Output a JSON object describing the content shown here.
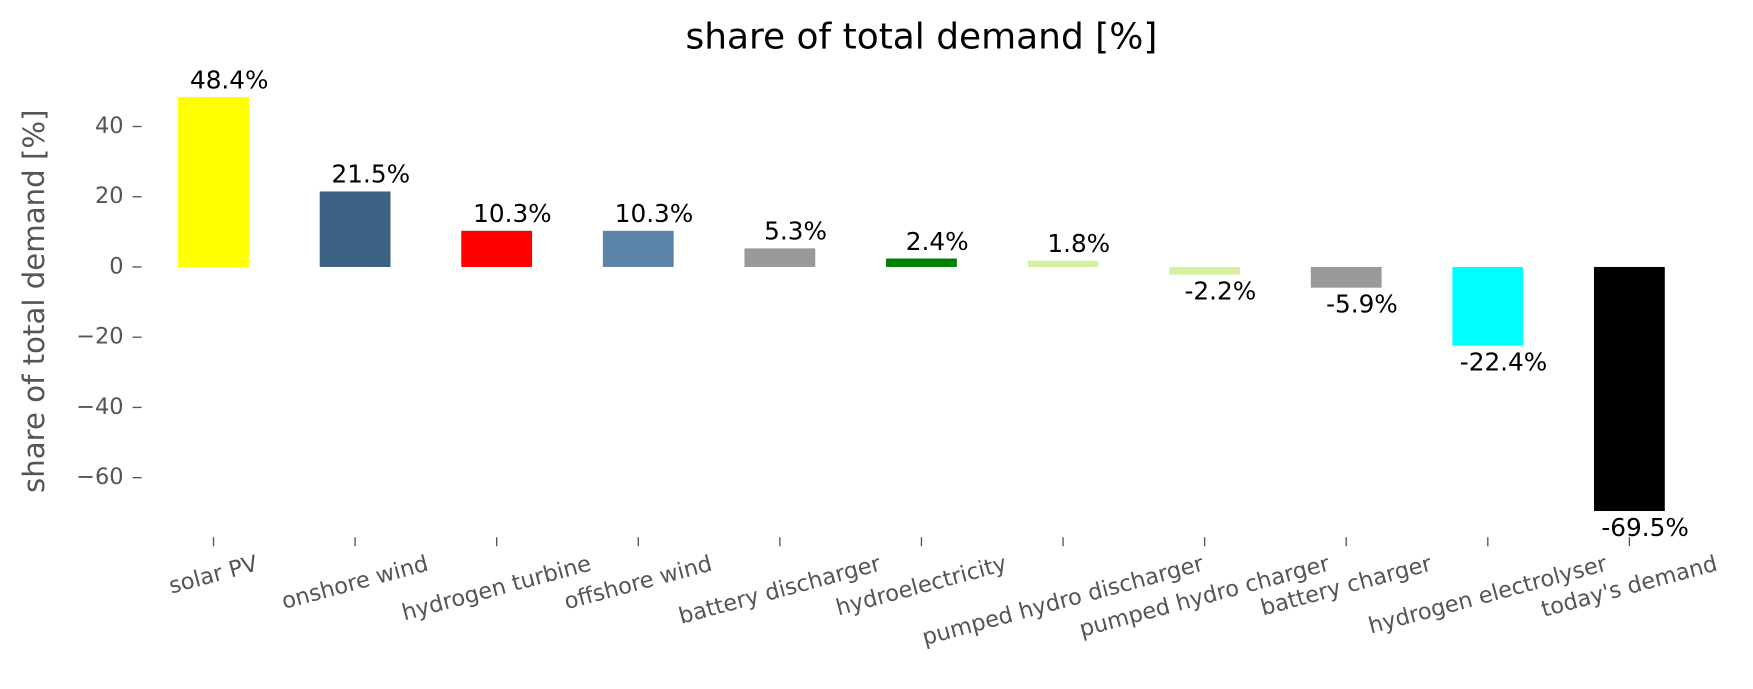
{
  "chart_data": {
    "type": "bar",
    "title": "share of total demand [%]",
    "ylabel": "share of total demand [%]",
    "categories": [
      "solar PV",
      "onshore wind",
      "hydrogen turbine",
      "offshore wind",
      "battery discharger",
      "hydroelectricity",
      "pumped hydro discharger",
      "pumped hydro charger",
      "battery charger",
      "hydrogen electrolyser",
      "today's demand"
    ],
    "values": [
      48.4,
      21.5,
      10.3,
      10.3,
      5.3,
      2.4,
      1.8,
      -2.2,
      -5.9,
      -22.4,
      -69.5
    ],
    "value_labels": [
      "48.4%",
      "21.5%",
      "10.3%",
      "10.3%",
      "5.3%",
      "2.4%",
      "1.8%",
      "-2.2%",
      "-5.9%",
      "-22.4%",
      "-69.5%"
    ],
    "colors": [
      "#ffff00",
      "#3b6182",
      "#ff0000",
      "#5b84a8",
      "#999999",
      "#008000",
      "#d4f0a0",
      "#d4f0a0",
      "#999999",
      "#00ffff",
      "#000000"
    ],
    "ylim": [
      -76,
      52
    ],
    "yticks": [
      {
        "value": -60,
        "label": "−60"
      },
      {
        "value": -40,
        "label": "−40"
      },
      {
        "value": -20,
        "label": "−20"
      },
      0,
      20,
      40
    ],
    "grid": false
  }
}
